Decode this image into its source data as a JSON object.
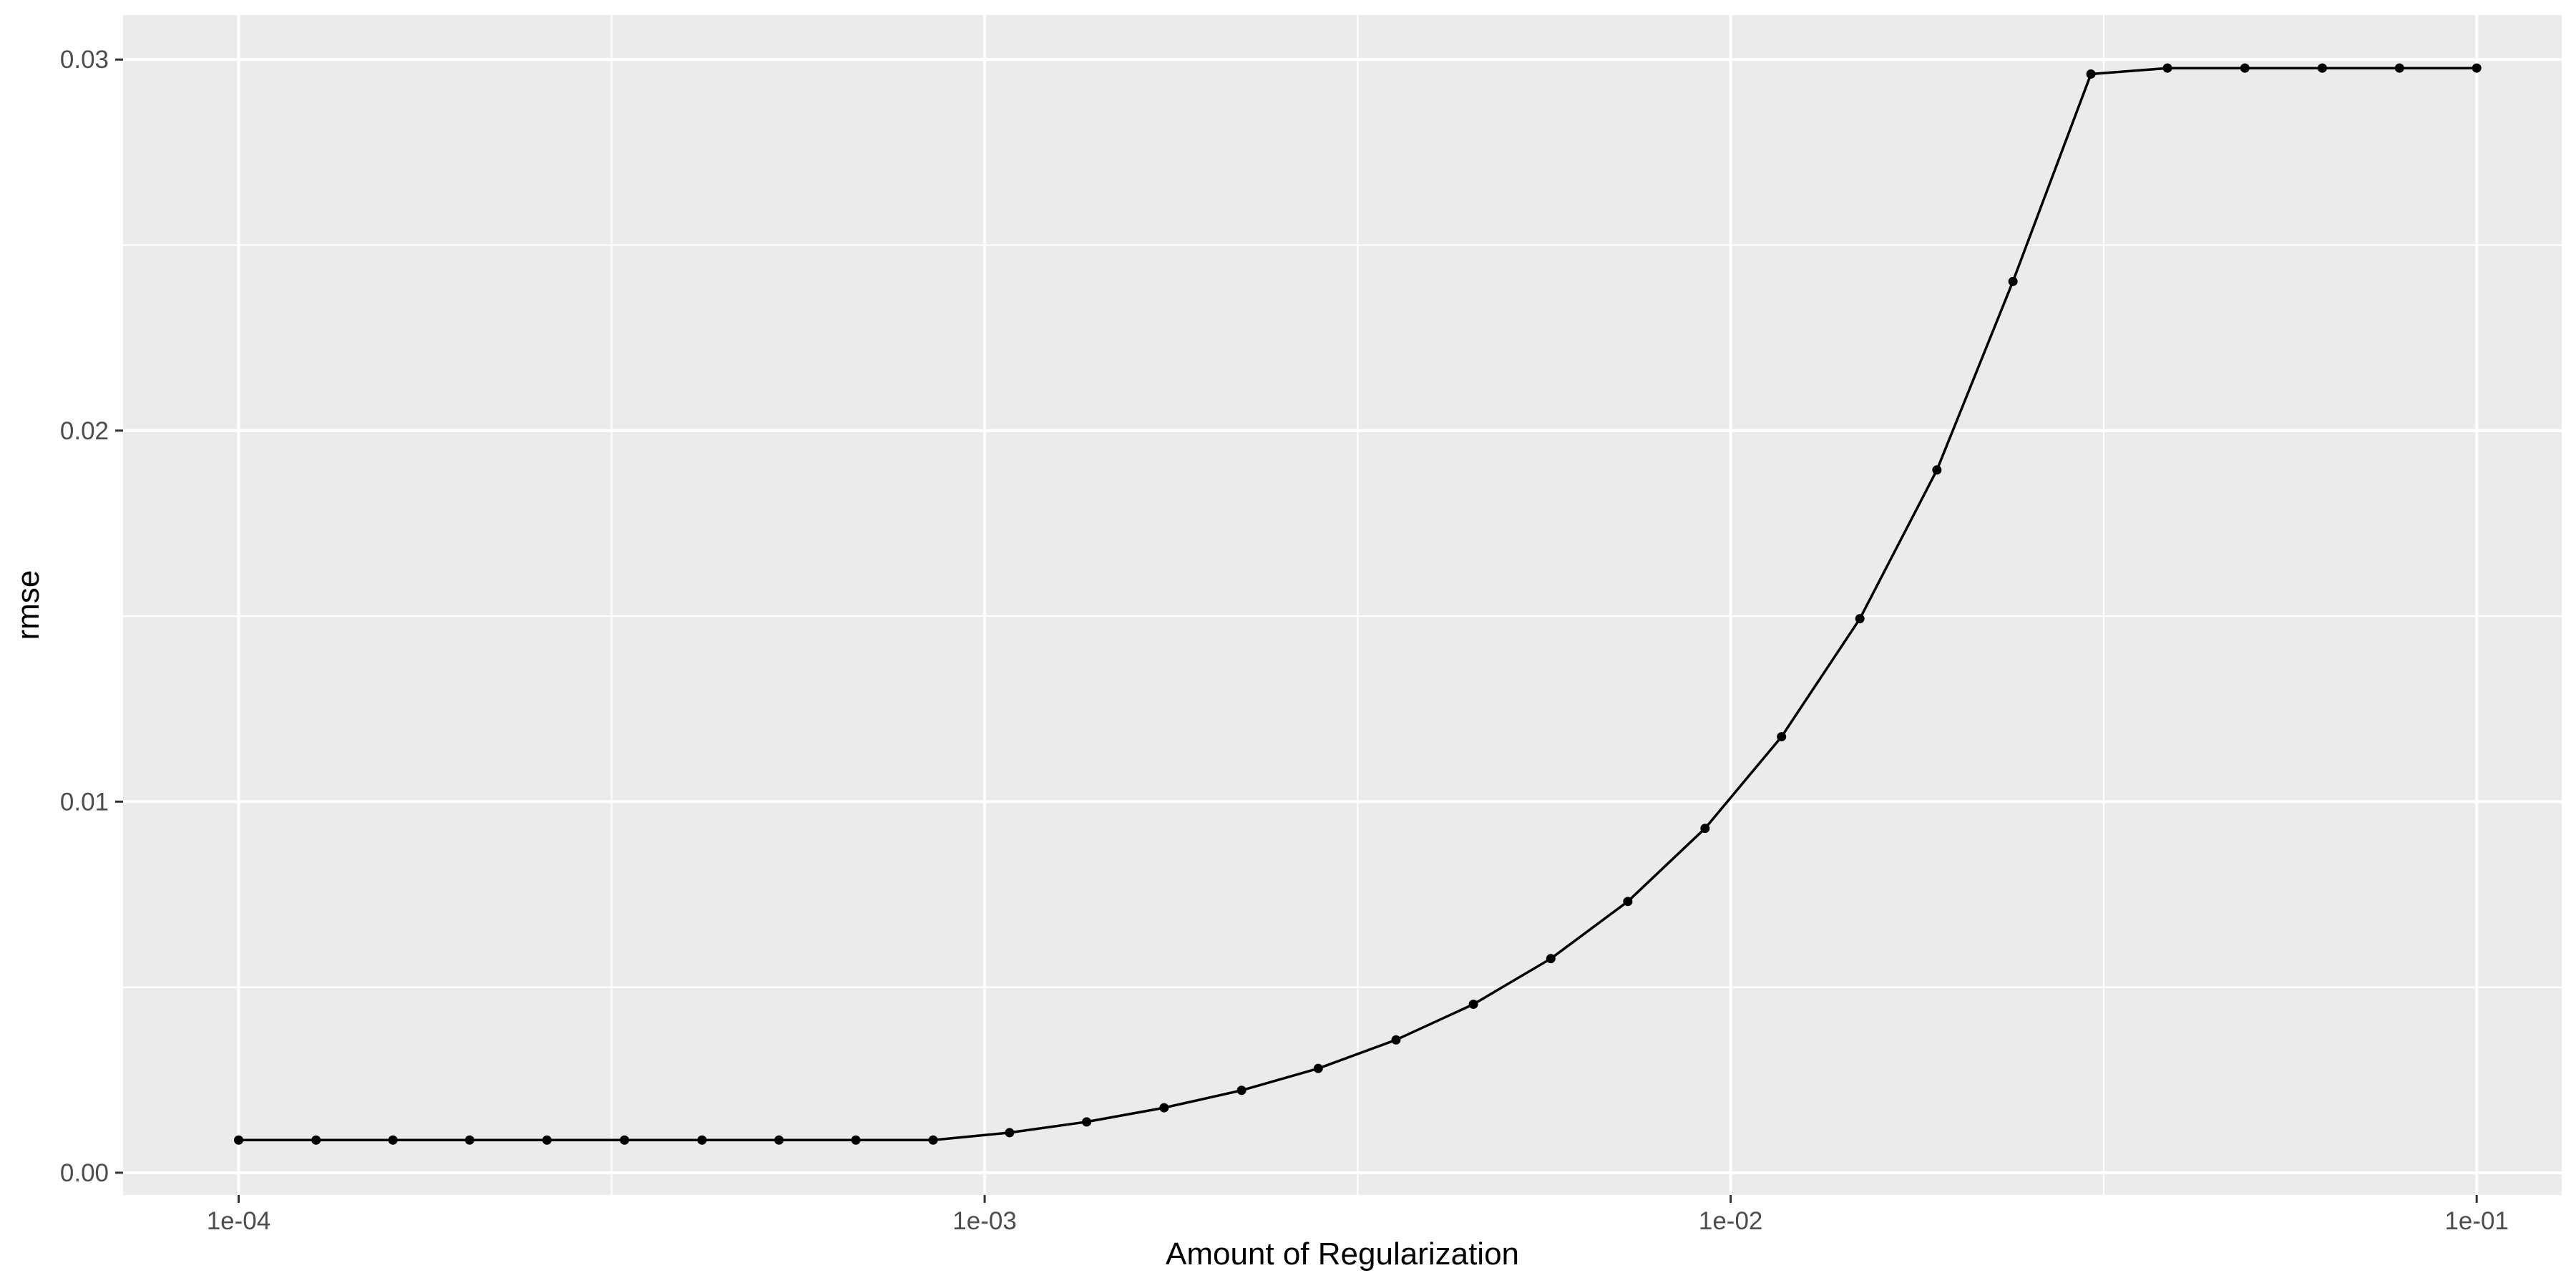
{
  "chart_data": {
    "type": "line",
    "title": "",
    "xlabel": "Amount of Regularization",
    "ylabel": "rmse",
    "x_scale": "log10",
    "xlim": [
      7e-05,
      0.13
    ],
    "ylim": [
      -0.0006,
      0.0312
    ],
    "x_ticks": [
      0.0001,
      0.001,
      0.01,
      0.1
    ],
    "x_tick_labels": [
      "1e-04",
      "1e-03",
      "1e-02",
      "1e-01"
    ],
    "y_ticks": [
      0,
      0.01,
      0.02,
      0.03
    ],
    "y_tick_labels": [
      "0.00",
      "0.01",
      "0.02",
      "0.03"
    ],
    "grid": true,
    "legend": "none",
    "colors": {
      "panel": "#ebebeb",
      "grid": "#ffffff",
      "line": "#000000",
      "tick_text": "#4d4d4d",
      "tick_mark": "#333333"
    },
    "series": [
      {
        "x": [
          0.0001,
          0.000127,
          0.000161,
          0.000204,
          0.000259,
          0.000329,
          0.000418,
          0.00053,
          0.000672,
          0.000853,
          0.00108,
          0.00137,
          0.00174,
          0.00221,
          0.0028,
          0.00356,
          0.00452,
          0.00574,
          0.00728,
          0.00924,
          0.0117,
          0.0149,
          0.0189,
          0.0239,
          0.0304,
          0.0385,
          0.0489,
          0.0621,
          0.0788,
          0.1
        ],
        "values": [
          0.00088,
          0.00088,
          0.00088,
          0.00088,
          0.00088,
          0.00088,
          0.00088,
          0.00088,
          0.00088,
          0.00088,
          0.00108,
          0.00137,
          0.00175,
          0.00222,
          0.00281,
          0.00358,
          0.00454,
          0.00577,
          0.00731,
          0.00928,
          0.01175,
          0.01493,
          0.01894,
          0.02402,
          0.02961,
          0.02977,
          0.02977,
          0.02977,
          0.02977,
          0.02977
        ]
      }
    ]
  }
}
